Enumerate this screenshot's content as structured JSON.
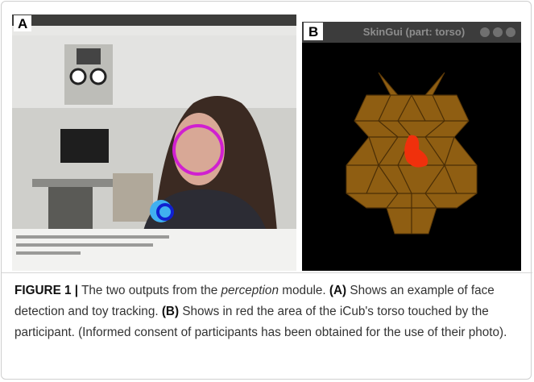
{
  "figure": {
    "panels": [
      {
        "label": "A"
      },
      {
        "label": "B",
        "window_title": "SkinGui (part: torso)"
      }
    ],
    "caption": {
      "label": "FIGURE 1 |",
      "segments": [
        "The two outputs from the",
        "perception",
        "module.",
        "(A)",
        "Shows an example of face detection and toy tracking.",
        "(B)",
        "Shows in red the area of the iCub's torso touched by the participant. (Informed consent of participants has been obtained for the use of their photo)."
      ]
    }
  }
}
